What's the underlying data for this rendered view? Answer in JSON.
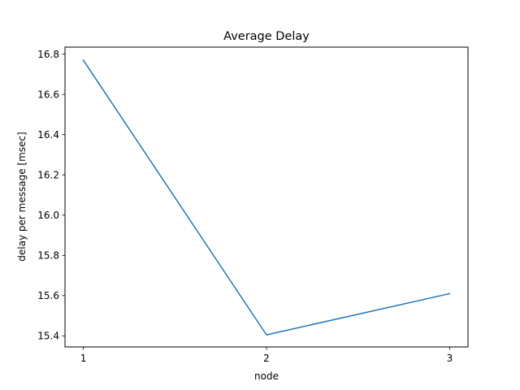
{
  "chart_data": {
    "type": "line",
    "title": "Average Delay",
    "xlabel": "node",
    "ylabel": "delay per message [msec]",
    "x": [
      1,
      2,
      3
    ],
    "series": [
      {
        "values": [
          16.77,
          15.405,
          15.61
        ],
        "color": "#1f77b4"
      }
    ],
    "xlim": [
      0.9,
      3.1
    ],
    "ylim": [
      15.345,
      16.835
    ],
    "xticks": [
      1,
      2,
      3
    ],
    "yticks": [
      15.4,
      15.6,
      15.8,
      16.0,
      16.2,
      16.4,
      16.6,
      16.8
    ],
    "ytick_labels": [
      "15.4",
      "15.6",
      "15.8",
      "16.0",
      "16.2",
      "16.4",
      "16.6",
      "16.8"
    ],
    "grid": false,
    "legend": "none"
  }
}
